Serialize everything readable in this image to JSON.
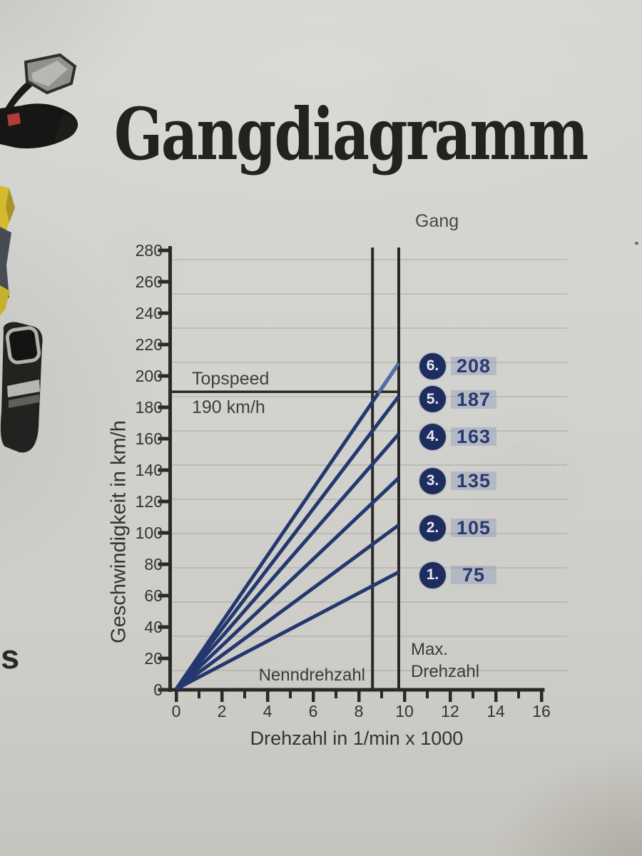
{
  "header": {
    "title": "Gangdiagramm"
  },
  "photo": {
    "caption_letter": "s",
    "fragments": [
      "rear-mirror",
      "mirror-stalk",
      "handguard",
      "red-lever",
      "yellow-fairing",
      "slate-panel",
      "yellow-fairing-lower",
      "muffler"
    ]
  },
  "chart_data": {
    "type": "line",
    "title": "Gangdiagramm",
    "xlabel": "Drehzahl in 1/min x 1000",
    "ylabel": "Geschwindigkeit in km/h",
    "legend_title": "Gang",
    "xlim": [
      0,
      16
    ],
    "ylim": [
      0,
      280
    ],
    "x_ticks": [
      0,
      2,
      4,
      6,
      8,
      10,
      12,
      14,
      16
    ],
    "x_minor_tick_step": 1,
    "y_ticks": [
      0,
      20,
      40,
      60,
      80,
      100,
      120,
      140,
      160,
      180,
      200,
      220,
      240,
      260,
      280
    ],
    "grid": {
      "horizontal_faint": true,
      "vertical": false
    },
    "legend_position": "right",
    "series": [
      {
        "name": "Gang 6",
        "badge": "6.",
        "value_label": "208",
        "x": [
          0,
          9.75
        ],
        "y": [
          0,
          208
        ]
      },
      {
        "name": "Gang 5",
        "badge": "5.",
        "value_label": "187",
        "x": [
          0,
          9.75
        ],
        "y": [
          0,
          187
        ]
      },
      {
        "name": "Gang 4",
        "badge": "4.",
        "value_label": "163",
        "x": [
          0,
          9.75
        ],
        "y": [
          0,
          163
        ]
      },
      {
        "name": "Gang 3",
        "badge": "3.",
        "value_label": "135",
        "x": [
          0,
          9.75
        ],
        "y": [
          0,
          135
        ]
      },
      {
        "name": "Gang 2",
        "badge": "2.",
        "value_label": "105",
        "x": [
          0,
          9.75
        ],
        "y": [
          0,
          105
        ]
      },
      {
        "name": "Gang 1",
        "badge": "1.",
        "value_label": "75",
        "x": [
          0,
          9.75
        ],
        "y": [
          0,
          75
        ]
      }
    ],
    "reference_lines": {
      "topspeed": {
        "axis": "y",
        "value": 190,
        "label_line1": "Topspeed",
        "label_line2": "190 km/h"
      },
      "nenndrehzahl": {
        "axis": "x",
        "value": 8.6,
        "label": "Nenndrehzahl"
      },
      "max_drehzahl": {
        "axis": "x",
        "value": 9.75,
        "label_line1": "Max.",
        "label_line2": "Drehzahl"
      }
    }
  },
  "colors": {
    "paper": "#d2d2ce",
    "ink_black": "#2a2927",
    "line_navy": "#24386f",
    "badge_navy": "#1e2d60",
    "value_navy": "#29396f",
    "highlight_band": "#929fbd",
    "grid_faint": "#74716a"
  }
}
